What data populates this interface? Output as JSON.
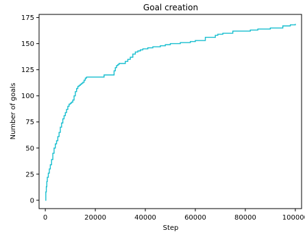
{
  "chart_data": {
    "type": "line",
    "title": "Goal creation",
    "xlabel": "Step",
    "ylabel": "Number of goals",
    "xlim": [
      -2500,
      102500
    ],
    "ylim": [
      -8,
      178
    ],
    "xticks": [
      0,
      20000,
      40000,
      60000,
      80000,
      100000
    ],
    "yticks": [
      0,
      25,
      50,
      75,
      100,
      125,
      150,
      175
    ],
    "grid": false,
    "legend": "none",
    "series": [
      {
        "color": "#17becf",
        "step": true,
        "x": [
          0,
          200,
          400,
          600,
          800,
          1200,
          1600,
          2000,
          2500,
          3000,
          3500,
          4000,
          4500,
          5000,
          5500,
          6000,
          6500,
          7000,
          7500,
          8000,
          8500,
          9000,
          9500,
          10000,
          10500,
          11000,
          11500,
          12000,
          12500,
          13000,
          13500,
          14000,
          14500,
          15000,
          15500,
          16000,
          16500,
          17000,
          17500,
          18000,
          20000,
          22000,
          23500,
          26000,
          27500,
          28000,
          28500,
          29000,
          29500,
          30000,
          32000,
          33000,
          34000,
          35000,
          36000,
          37000,
          38000,
          39000,
          40000,
          41000,
          42000,
          43000,
          44000,
          45000,
          46000,
          48000,
          50000,
          52000,
          54000,
          56000,
          58000,
          60000,
          62000,
          64000,
          66000,
          68000,
          69000,
          71000,
          73000,
          75000,
          78000,
          80000,
          82000,
          85000,
          88000,
          90000,
          92000,
          94000,
          95000,
          97000,
          98000,
          99000,
          100000
        ],
        "y": [
          0,
          8,
          13,
          18,
          22,
          26,
          30,
          34,
          39,
          45,
          50,
          54,
          57,
          61,
          65,
          70,
          74,
          78,
          81,
          84,
          87,
          90,
          92,
          93,
          94,
          96,
          100,
          104,
          107,
          109,
          110,
          111,
          112,
          113,
          115,
          117,
          118,
          118,
          118,
          118,
          118,
          118,
          120,
          120,
          124,
          127,
          129,
          130,
          131,
          131,
          133,
          135,
          137,
          140,
          142,
          143,
          144,
          145,
          145,
          146,
          146,
          147,
          147,
          147,
          148,
          149,
          150,
          150,
          151,
          151,
          152,
          153,
          153,
          156,
          156,
          158,
          159,
          160,
          160,
          162,
          162,
          162,
          163,
          164,
          164,
          165,
          165,
          165,
          167,
          167,
          168,
          168,
          169
        ]
      }
    ]
  }
}
